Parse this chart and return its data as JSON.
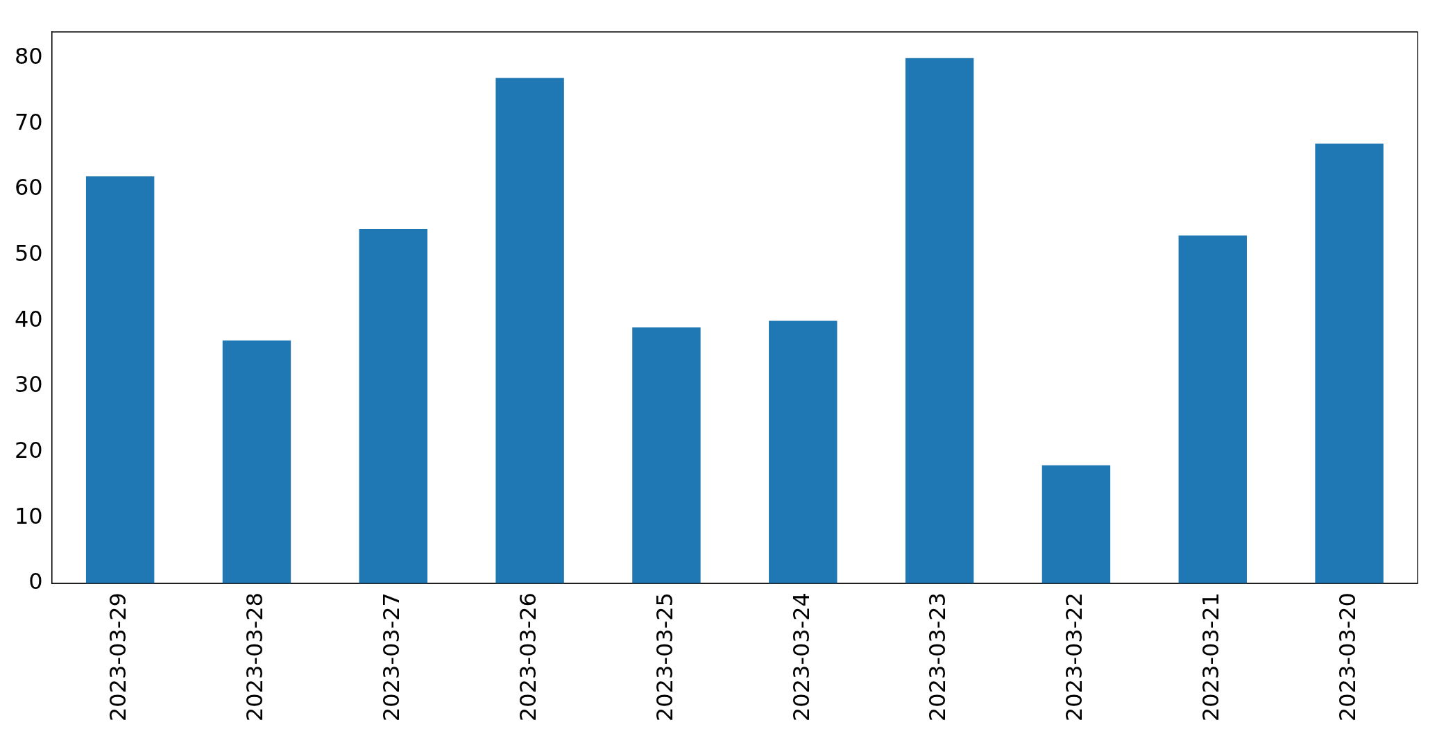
{
  "chart_data": {
    "type": "bar",
    "categories": [
      "2023-03-29",
      "2023-03-28",
      "2023-03-27",
      "2023-03-26",
      "2023-03-25",
      "2023-03-24",
      "2023-03-23",
      "2023-03-22",
      "2023-03-21",
      "2023-03-20"
    ],
    "values": [
      62,
      37,
      54,
      77,
      39,
      40,
      80,
      18,
      53,
      67
    ],
    "color": "#1f77b4",
    "ylim": [
      0,
      84
    ],
    "yticks": [
      0,
      10,
      20,
      30,
      40,
      50,
      60,
      70,
      80
    ],
    "grid": false,
    "legend": false
  }
}
